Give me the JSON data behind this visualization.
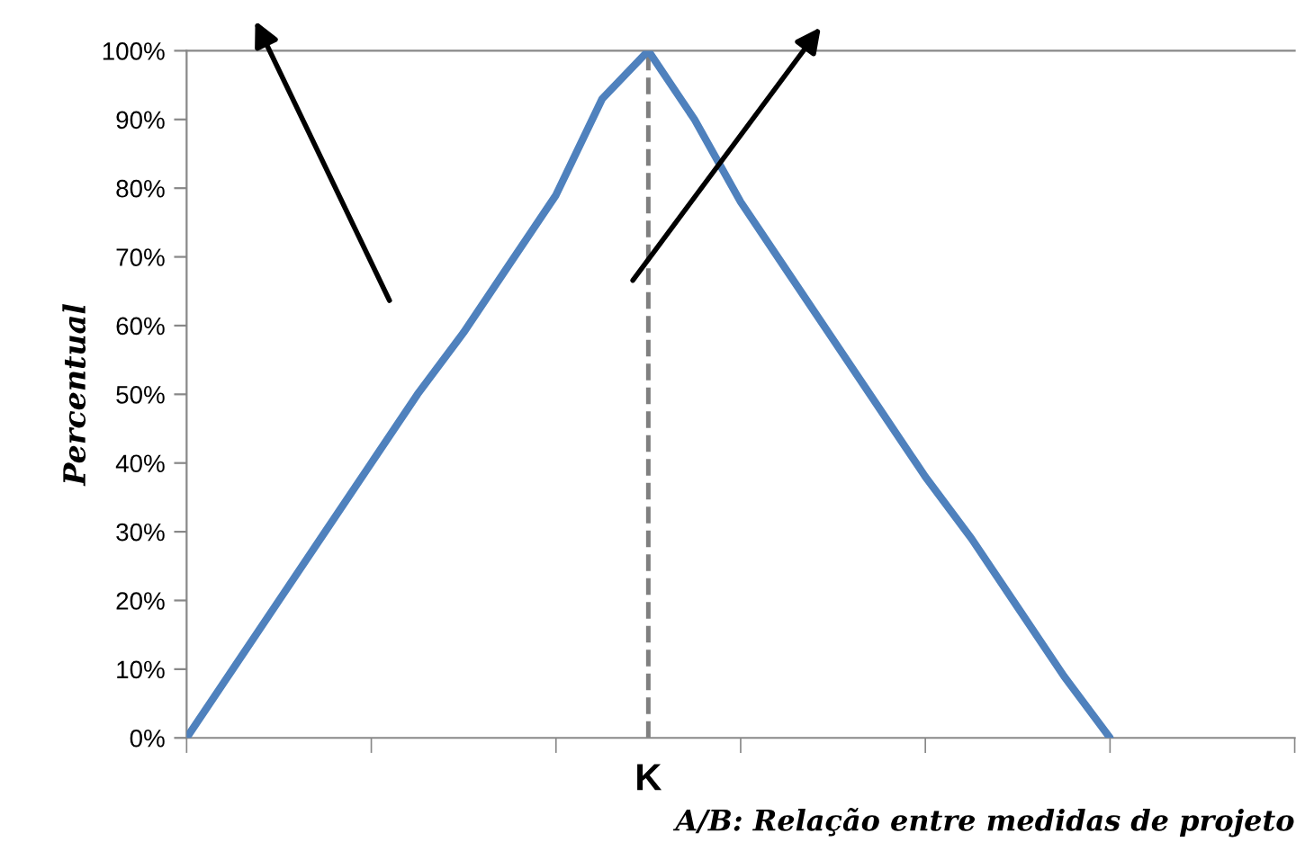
{
  "chart_data": {
    "type": "line",
    "ylabel": "Percentual",
    "xlabel": "A/B: Relação entre medidas de projeto",
    "categories": [
      null,
      null,
      null,
      null,
      null,
      null,
      null,
      null,
      null,
      null,
      "K",
      null,
      null,
      null,
      null,
      null,
      null,
      null,
      null,
      null,
      null,
      null,
      null,
      null,
      null
    ],
    "series": [
      {
        "color": "#4f81bd",
        "values": [
          0,
          10,
          20,
          30,
          40,
          50,
          59,
          69,
          79,
          93,
          100,
          90,
          78,
          68,
          58,
          48,
          38,
          29,
          19,
          9,
          0,
          null,
          null,
          null,
          null
        ]
      }
    ],
    "ylim": [
      0,
      100
    ],
    "yticks": [
      {
        "value": 0,
        "label": "0%"
      },
      {
        "value": 10,
        "label": "10%"
      },
      {
        "value": 20,
        "label": "20%"
      },
      {
        "value": 30,
        "label": "30%"
      },
      {
        "value": 40,
        "label": "40%"
      },
      {
        "value": 50,
        "label": "50%"
      },
      {
        "value": 60,
        "label": "60%"
      },
      {
        "value": 70,
        "label": "70%"
      },
      {
        "value": 80,
        "label": "80%"
      },
      {
        "value": 90,
        "label": "90%"
      },
      {
        "value": 100,
        "label": "100%"
      }
    ],
    "ref_lines": [
      {
        "axis": "x",
        "value": "K",
        "color": "#7f7f7f",
        "line_style": "dashed"
      }
    ],
    "grid": false,
    "marker": "none",
    "line_style": "solid"
  }
}
